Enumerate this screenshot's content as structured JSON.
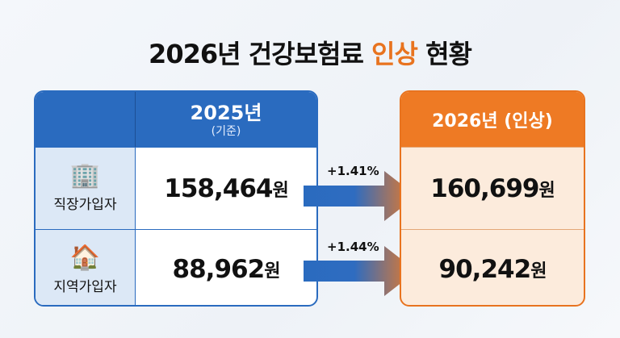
{
  "title": {
    "prefix": "2026년 건강보험료 ",
    "highlight": "인상",
    "suffix": " 현황"
  },
  "colors": {
    "blue": "#2a6bbf",
    "orange": "#ee7a24"
  },
  "base": {
    "year": "2025년",
    "note": "(기준)"
  },
  "raised": {
    "header": "2026년 (인상)"
  },
  "unit": "원",
  "rows": [
    {
      "label": "직장가입자",
      "icon": "office-building-icon",
      "before": "158,464",
      "change": "+1.41%",
      "after": "160,699"
    },
    {
      "label": "지역가입자",
      "icon": "house-family-icon",
      "before": "88,962",
      "change": "+1.44%",
      "after": "90,242"
    }
  ]
}
